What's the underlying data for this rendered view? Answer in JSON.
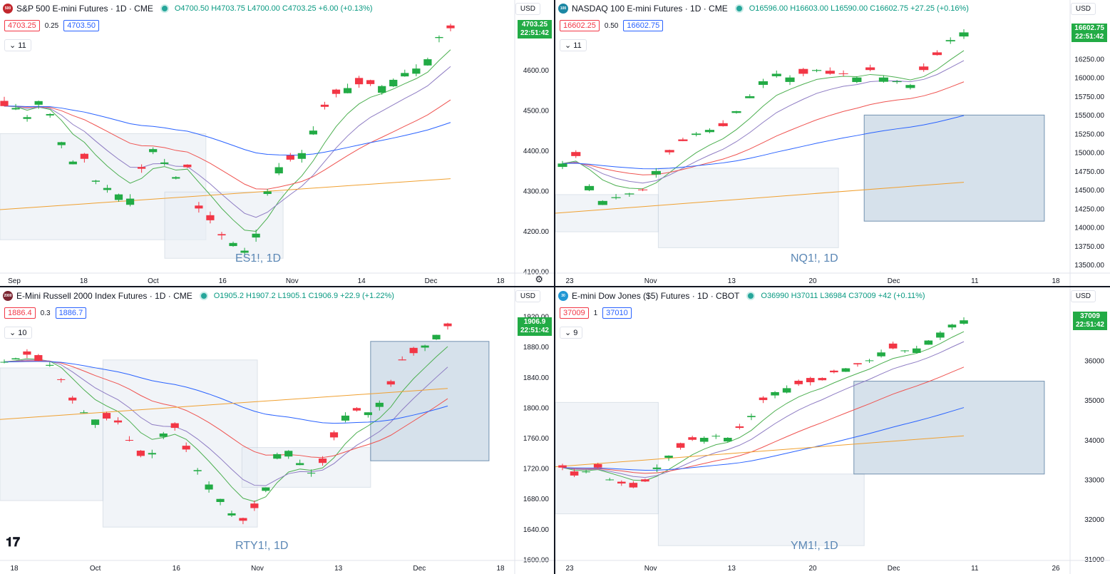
{
  "colors": {
    "up": "#22ab45",
    "down": "#f23645",
    "ema_fast": "#4caf50",
    "ema_mid": "#8e7cc3",
    "ema_slow": "#ef5350",
    "ema_long": "#f0a030",
    "ema_blue": "#2962ff",
    "zone": "#b0c4d8"
  },
  "charts": [
    {
      "title": "S&P 500 E-mini Futures · 1D · CME",
      "logo": "500",
      "logo_color": "#c2272d",
      "ohlc": "O4700.50 H4703.75 L4700.00 C4703.25 +6.00 (+0.13%)",
      "bid": "4703.25",
      "spread": "0.25",
      "ask": "4703.50",
      "counter": "11",
      "currency": "USD",
      "price_tag": "4703.25",
      "time_tag": "22:51:42",
      "watermark": "ES1!, 1D",
      "y_ticks": [
        "4600.00",
        "4500.00",
        "4400.00",
        "4300.00",
        "4200.00",
        "4100.00"
      ],
      "x_ticks": [
        "Sep",
        "18",
        "Oct",
        "16",
        "Nov",
        "14",
        "Dec",
        "18"
      ],
      "chart_data": {
        "type": "candlestick",
        "y_range": [
          4080,
          4720
        ],
        "close_path": [
          4510,
          4505,
          4480,
          4530,
          4480,
          4400,
          4360,
          4390,
          4280,
          4330,
          4250,
          4320,
          4410,
          4390,
          4320,
          4380,
          4260,
          4230,
          4190,
          4170,
          4150,
          4200,
          4320,
          4370,
          4380,
          4400,
          4480,
          4530,
          4550,
          4560,
          4570,
          4555,
          4570,
          4590,
          4600,
          4620,
          4680,
          4703
        ],
        "ema_20_end": 4580,
        "ema_50_end": 4430,
        "ema_200_end": 4330
      }
    },
    {
      "title": "NASDAQ 100 E-mini Futures · 1D · CME",
      "logo": "100",
      "logo_color": "#1c87a4",
      "ohlc": "O16596.00 H16603.00 L16590.00 C16602.75 +27.25 (+0.16%)",
      "bid": "16602.25",
      "spread": "0.50",
      "ask": "16602.75",
      "counter": "11",
      "currency": "USD",
      "price_tag": "16602.75",
      "time_tag": "22:51:42",
      "watermark": "NQ1!, 1D",
      "y_ticks": [
        "16250.00",
        "16000.00",
        "15750.00",
        "15500.00",
        "15250.00",
        "15000.00",
        "14750.00",
        "14500.00",
        "14250.00",
        "14000.00",
        "13750.00",
        "13500.00"
      ],
      "x_ticks": [
        "23",
        "Nov",
        "13",
        "20",
        "Dec",
        "11",
        "18"
      ],
      "chart_data": {
        "type": "candlestick",
        "y_range": [
          13300,
          16750
        ],
        "close_path": [
          14850,
          14950,
          14550,
          14350,
          14400,
          14450,
          14500,
          14750,
          15000,
          15150,
          15250,
          15300,
          15350,
          15550,
          15750,
          15950,
          16050,
          16000,
          16050,
          16100,
          16050,
          16050,
          16000,
          16100,
          16000,
          15950,
          15900,
          16100,
          16300,
          16500,
          16603
        ],
        "ema_20_end": 16100,
        "ema_50_end": 15450,
        "ema_200_end": 14600
      }
    },
    {
      "title": "E-Mini Russell 2000 Index Futures · 1D · CME",
      "logo": "2000",
      "logo_color": "#7b2531",
      "ohlc": "O1905.2 H1907.2 L1905.1 C1906.9 +22.9 (+1.22%)",
      "bid": "1886.4",
      "spread": "0.3",
      "ask": "1886.7",
      "counter": "10",
      "currency": "USD",
      "price_tag": "1906.9",
      "time_tag": "22:51:42",
      "watermark": "RTY1!, 1D",
      "y_ticks": [
        "1920.00",
        "1880.00",
        "1840.00",
        "1800.00",
        "1760.00",
        "1720.00",
        "1680.00",
        "1640.00",
        "1600.00"
      ],
      "x_ticks": [
        "18",
        "Oct",
        "16",
        "Nov",
        "13",
        "Dec",
        "18"
      ],
      "chart_data": {
        "type": "candlestick",
        "y_range": [
          1590,
          1930
        ],
        "close_path": [
          1860,
          1865,
          1870,
          1860,
          1855,
          1830,
          1800,
          1790,
          1780,
          1790,
          1770,
          1740,
          1730,
          1760,
          1780,
          1750,
          1720,
          1700,
          1680,
          1660,
          1650,
          1670,
          1700,
          1750,
          1740,
          1720,
          1710,
          1740,
          1780,
          1800,
          1790,
          1800,
          1820,
          1860,
          1870,
          1880,
          1895,
          1907
        ],
        "ema_20_end": 1835,
        "ema_50_end": 1770,
        "ema_200_end": 1825
      }
    },
    {
      "title": "E-mini Dow Jones ($5) Futures · 1D · CBOT",
      "logo": "30",
      "logo_color": "#2197d4",
      "ohlc": "O36990 H37011 L36984 C37009 +42 (+0.11%)",
      "bid": "37009",
      "spread": "1",
      "ask": "37010",
      "counter": "9",
      "currency": "USD",
      "price_tag": "37009",
      "time_tag": "22:51:42",
      "watermark": "YM1!, 1D",
      "y_ticks": [
        "36000",
        "35000",
        "34000",
        "33000",
        "32000",
        "31000"
      ],
      "x_ticks": [
        "23",
        "Nov",
        "13",
        "20",
        "Dec",
        "11",
        "26"
      ],
      "chart_data": {
        "type": "candlestick",
        "y_range": [
          30800,
          37300
        ],
        "close_path": [
          33300,
          33100,
          33200,
          33300,
          33000,
          32900,
          32800,
          32950,
          33300,
          33600,
          33800,
          34000,
          34050,
          34100,
          34050,
          34300,
          34600,
          35000,
          35200,
          35300,
          35400,
          35450,
          35500,
          35700,
          35800,
          35900,
          36000,
          36200,
          36300,
          36250,
          36300,
          36500,
          36700,
          36900,
          37009
        ],
        "ema_20_end": 36500,
        "ema_50_end": 35850,
        "ema_200_end": 34100
      }
    }
  ]
}
